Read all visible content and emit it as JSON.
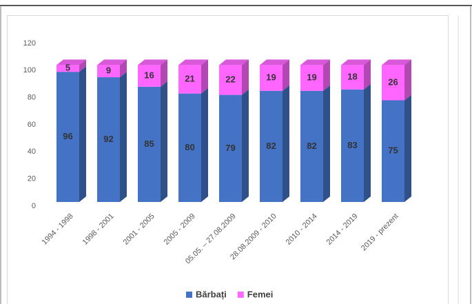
{
  "chart_data": {
    "type": "bar",
    "stacked": true,
    "categories": [
      "1994 - 1998",
      "1998 - 2001",
      "2001 - 2005",
      "2005 - 2009",
      "05.05. – 27.08.2009",
      "28.08.2009 - 2010",
      "2010 - 2014",
      "2014 - 2019",
      "2019 - prezent"
    ],
    "series": [
      {
        "name": "Bărbați",
        "color": "#4472c4",
        "values": [
          96,
          92,
          85,
          80,
          79,
          82,
          82,
          83,
          75
        ]
      },
      {
        "name": "Femei",
        "color": "#ff66ff",
        "values": [
          5,
          9,
          16,
          21,
          22,
          19,
          19,
          18,
          26
        ]
      }
    ],
    "ylim": [
      0,
      120
    ],
    "yticks": [
      0,
      20,
      40,
      60,
      80,
      100,
      120
    ],
    "grid": false,
    "legend": "bottom"
  }
}
